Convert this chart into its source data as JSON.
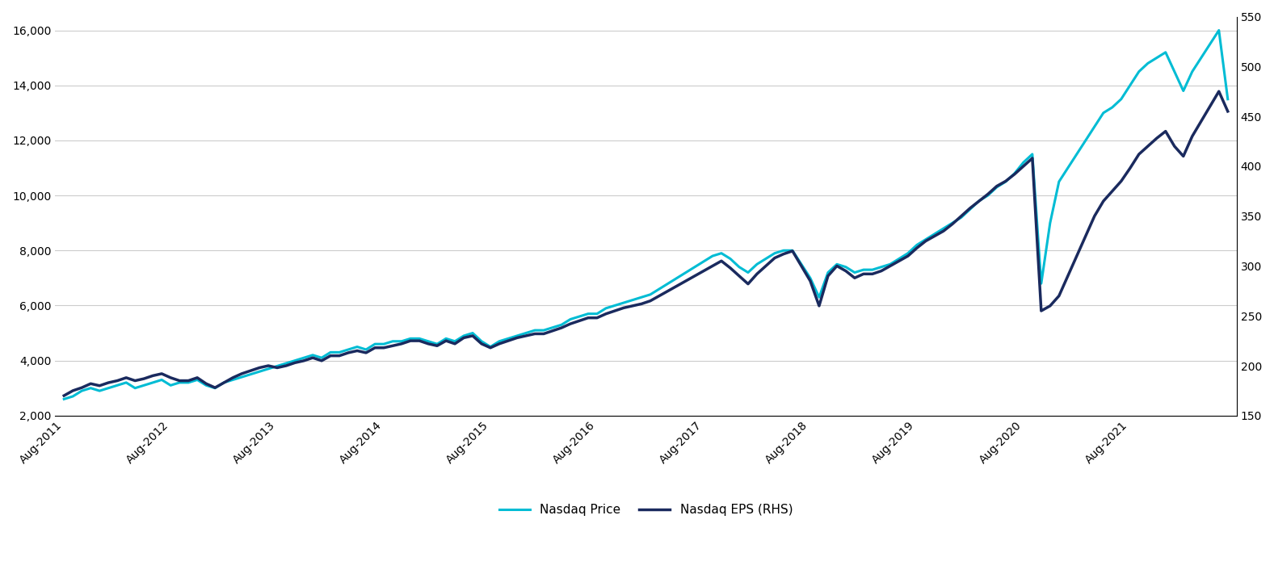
{
  "title": "",
  "nasdaq_price": [
    2600,
    2700,
    2900,
    3000,
    2900,
    3000,
    3100,
    3200,
    3000,
    3100,
    3200,
    3300,
    3100,
    3200,
    3200,
    3300,
    3100,
    3000,
    3200,
    3300,
    3400,
    3500,
    3600,
    3700,
    3800,
    3900,
    4000,
    4100,
    4200,
    4100,
    4300,
    4300,
    4400,
    4500,
    4400,
    4600,
    4600,
    4700,
    4700,
    4800,
    4800,
    4700,
    4600,
    4800,
    4700,
    4900,
    5000,
    4700,
    4500,
    4700,
    4800,
    4900,
    5000,
    5100,
    5100,
    5200,
    5300,
    5500,
    5600,
    5700,
    5700,
    5900,
    6000,
    6100,
    6200,
    6300,
    6400,
    6600,
    6800,
    7000,
    7200,
    7400,
    7600,
    7800,
    7900,
    7700,
    7400,
    7200,
    7500,
    7700,
    7900,
    8000,
    8000,
    7500,
    7000,
    6300,
    7200,
    7500,
    7400,
    7200,
    7300,
    7300,
    7400,
    7500,
    7700,
    7900,
    8200,
    8400,
    8600,
    8800,
    9000,
    9200,
    9500,
    9800,
    10000,
    10300,
    10500,
    10800,
    11200,
    11500,
    6800,
    9000,
    10500,
    11000,
    11500,
    12000,
    12500,
    13000,
    13200,
    13500,
    14000,
    14500,
    14800,
    15000,
    15200,
    14500,
    13800,
    14500,
    15000,
    15500,
    16000,
    13500
  ],
  "nasdaq_eps": [
    170,
    175,
    178,
    182,
    180,
    183,
    185,
    188,
    185,
    187,
    190,
    192,
    188,
    185,
    185,
    188,
    182,
    178,
    183,
    188,
    192,
    195,
    198,
    200,
    198,
    200,
    203,
    205,
    208,
    205,
    210,
    210,
    213,
    215,
    213,
    218,
    218,
    220,
    222,
    225,
    225,
    222,
    220,
    225,
    222,
    228,
    230,
    222,
    218,
    222,
    225,
    228,
    230,
    232,
    232,
    235,
    238,
    242,
    245,
    248,
    248,
    252,
    255,
    258,
    260,
    262,
    265,
    270,
    275,
    280,
    285,
    290,
    295,
    300,
    305,
    298,
    290,
    282,
    292,
    300,
    308,
    312,
    315,
    300,
    285,
    260,
    290,
    300,
    295,
    288,
    292,
    292,
    295,
    300,
    305,
    310,
    318,
    325,
    330,
    335,
    342,
    350,
    358,
    365,
    372,
    380,
    385,
    392,
    400,
    408,
    255,
    260,
    270,
    290,
    310,
    330,
    350,
    365,
    375,
    385,
    398,
    412,
    420,
    428,
    435,
    420,
    410,
    430,
    445,
    460,
    475,
    455
  ],
  "n_points": 132,
  "x_ticks": [
    "Aug-2011",
    "Aug-2012",
    "Aug-2013",
    "Aug-2014",
    "Aug-2015",
    "Aug-2016",
    "Aug-2017",
    "Aug-2018",
    "Aug-2019",
    "Aug-2020",
    "Aug-2021"
  ],
  "x_tick_indices": [
    0,
    12,
    24,
    36,
    48,
    60,
    72,
    84,
    96,
    108,
    120
  ],
  "ylim_left": [
    2000,
    16500
  ],
  "ylim_right": [
    150,
    550
  ],
  "yticks_left": [
    2000,
    4000,
    6000,
    8000,
    10000,
    12000,
    14000,
    16000
  ],
  "yticks_right": [
    150,
    200,
    250,
    300,
    350,
    400,
    450,
    500,
    550
  ],
  "color_price": "#00BCD4",
  "color_eps": "#1a2a5e",
  "linewidth_price": 2.2,
  "linewidth_eps": 2.5,
  "legend_labels": [
    "Nasdaq Price",
    "Nasdaq EPS (RHS)"
  ],
  "grid_color": "#cccccc",
  "background_color": "#ffffff",
  "fig_width": 15.77,
  "fig_height": 7.11
}
